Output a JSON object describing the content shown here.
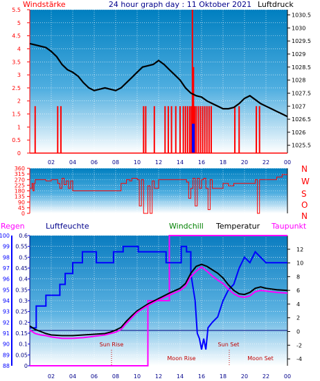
{
  "header": {
    "left": "Windstärke",
    "center": "24 hour graph day : 11 Oktober 2021",
    "right": "Luftdruck"
  },
  "legend3": {
    "regen": "Regen",
    "luftfeuchte": "Luftfeuchte",
    "windchill": "Windchill",
    "temperatur": "Temperatur",
    "taupunkt": "Taupunkt"
  },
  "annotations": {
    "sun_rise": "Sun Rise",
    "sun_set": "Sun Set",
    "moon_rise": "Moon Rise",
    "moon_set": "Moon Set"
  },
  "colors": {
    "wind": "#ff0000",
    "pressure": "#000000",
    "humidity": "#0000ff",
    "temperature": "#000000",
    "dewpoint": "#ff00ff",
    "rain_axis": "#0000ff",
    "regen_label": "#ff00ff",
    "windchill_label": "#008000",
    "taupunkt_label": "#ff00ff"
  },
  "chart_data": [
    {
      "type": "line",
      "title": "24 hour graph day : 11 Oktober 2021",
      "x_ticks": [
        "02",
        "04",
        "06",
        "08",
        "10",
        "12",
        "14",
        "16",
        "18",
        "20",
        "22",
        "00"
      ],
      "x_range": [
        0,
        24
      ],
      "left_axis": {
        "label": "Windstärke",
        "range": [
          0,
          5.5
        ],
        "ticks": [
          "0",
          "0.5",
          "1",
          "1.5",
          "2",
          "2.5",
          "3",
          "3.5",
          "4",
          "4.5",
          "5",
          "5.5"
        ]
      },
      "right_axis": {
        "label": "Luftdruck",
        "range": [
          1025.2,
          1030.7
        ],
        "ticks": [
          "1025.5",
          "1026",
          "1026.5",
          "1027",
          "1027.5",
          "1028",
          "1028.5",
          "1029",
          "1029.5",
          "1030",
          "1030.5"
        ]
      },
      "series": [
        {
          "name": "Luftdruck",
          "x": [
            0,
            0.5,
            1,
            1.5,
            2,
            2.5,
            3,
            3.5,
            4,
            4.5,
            5,
            5.5,
            6,
            6.5,
            7,
            7.5,
            8,
            8.5,
            9,
            9.5,
            10,
            10.5,
            11,
            11.5,
            12,
            12.5,
            13,
            13.5,
            14,
            14.5,
            15,
            15.5,
            16,
            16.5,
            17,
            17.5,
            18,
            18.5,
            19,
            19.5,
            20,
            20.5,
            21,
            21.5,
            22,
            22.5,
            23,
            23.5,
            24
          ],
          "y": [
            1029.4,
            1029.35,
            1029.3,
            1029.25,
            1029.1,
            1028.9,
            1028.6,
            1028.4,
            1028.3,
            1028.15,
            1027.9,
            1027.7,
            1027.6,
            1027.65,
            1027.7,
            1027.65,
            1027.6,
            1027.7,
            1027.9,
            1028.1,
            1028.3,
            1028.5,
            1028.55,
            1028.6,
            1028.75,
            1028.6,
            1028.4,
            1028.2,
            1028,
            1027.7,
            1027.5,
            1027.4,
            1027.35,
            1027.2,
            1027.1,
            1027,
            1026.9,
            1026.9,
            1026.95,
            1027.1,
            1027.3,
            1027.4,
            1027.25,
            1027.1,
            1027,
            1026.9,
            1026.8,
            1026.7,
            1026.6
          ]
        },
        {
          "name": "Windstärke",
          "x": [
            0.5,
            2.6,
            2.9,
            10.6,
            10.8,
            11.6,
            12.6,
            12.9,
            13.2,
            13.6,
            14.0,
            14.3,
            14.5,
            14.7,
            14.9,
            15.05,
            15.15,
            15.25,
            15.35,
            15.5,
            15.7,
            15.9,
            16.1,
            16.3,
            16.5,
            16.7,
            16.9,
            19.1,
            19.5,
            21.1,
            21.4
          ],
          "y": [
            1.8,
            1.8,
            1.8,
            1.8,
            1.8,
            1.8,
            1.8,
            1.8,
            1.8,
            1.8,
            1.8,
            1.8,
            1.8,
            1.8,
            1.8,
            1.8,
            5.5,
            3.3,
            1.8,
            1.8,
            1.8,
            1.8,
            1.8,
            1.8,
            1.8,
            1.8,
            1.8,
            1.8,
            1.8,
            1.8,
            1.8
          ]
        }
      ]
    },
    {
      "type": "line",
      "title": "",
      "x_range": [
        0,
        24
      ],
      "left_axis": {
        "range": [
          0,
          360
        ],
        "ticks": [
          "0",
          "45",
          "90",
          "135",
          "180",
          "225",
          "270",
          "315",
          "360"
        ]
      },
      "right_axis": {
        "ticks": [
          "N",
          "W",
          "S",
          "O",
          "N"
        ]
      },
      "series": [
        {
          "name": "",
          "x": [
            0,
            0.2,
            0.3,
            0.4,
            0.5,
            1,
            1.5,
            2,
            2.5,
            2.6,
            2.8,
            3,
            3.2,
            3.4,
            3.6,
            3.8,
            4,
            5,
            6,
            7,
            8,
            8.5,
            9,
            9.3,
            9.5,
            10,
            10.2,
            10.4,
            10.6,
            11,
            11.2,
            11.4,
            11.6,
            12,
            12.4,
            13,
            14,
            14.6,
            14.8,
            15,
            15.2,
            15.4,
            15.6,
            15.8,
            16,
            16.2,
            16.4,
            16.6,
            16.8,
            17,
            18,
            18.5,
            19,
            20,
            21,
            21.2,
            21.4,
            22,
            23,
            23.5,
            24
          ],
          "y": [
            200,
            240,
            180,
            240,
            270,
            270,
            260,
            270,
            270,
            240,
            200,
            280,
            230,
            260,
            200,
            260,
            180,
            180,
            180,
            180,
            180,
            240,
            270,
            260,
            280,
            270,
            60,
            270,
            0,
            220,
            0,
            260,
            200,
            270,
            270,
            270,
            270,
            250,
            120,
            200,
            280,
            60,
            280,
            200,
            270,
            280,
            200,
            30,
            270,
            200,
            240,
            220,
            240,
            240,
            270,
            0,
            270,
            270,
            290,
            310,
            310
          ]
        }
      ]
    },
    {
      "type": "line",
      "title": "",
      "x_range": [
        0,
        24
      ],
      "rain_axis": {
        "label": "Regen",
        "range": [
          0,
          0.6
        ],
        "ticks": [
          "0",
          "0.05",
          "0.1",
          "0.15",
          "0.2",
          "0.25",
          "0.3",
          "0.35",
          "0.4",
          "0.45",
          "0.5",
          "0.55",
          "0.6"
        ]
      },
      "humidity_axis": {
        "label": "Luftfeuchte",
        "range": [
          88,
          100
        ],
        "ticks": [
          "88",
          "89",
          "90",
          "91",
          "92",
          "93",
          "94",
          "95",
          "96",
          "97",
          "98",
          "99",
          "100"
        ]
      },
      "temperature_axis": {
        "range": [
          -5,
          14
        ],
        "ticks": [
          "-4",
          "-2",
          "0",
          "2",
          "4",
          "6",
          "8",
          "10",
          "12"
        ]
      },
      "series": [
        {
          "name": "Luftfeuchte",
          "x": [
            0,
            0.6,
            0.6,
            1.5,
            1.5,
            2.8,
            2.8,
            3.3,
            3.3,
            4.0,
            4.0,
            4.9,
            4.9,
            6.2,
            6.2,
            7.8,
            7.8,
            8.7,
            8.7,
            10.1,
            10.1,
            12.7,
            12.7,
            14.1,
            14.1,
            14.6,
            14.6,
            15.0,
            15.0,
            15.4,
            15.6,
            15.8,
            16.0,
            16.2,
            16.4,
            16.6,
            17.0,
            17.5,
            18.0,
            18.5,
            19.0,
            19.5,
            20.0,
            20.5,
            21.0,
            22.0,
            23.0,
            24.0
          ],
          "y": [
            91.5,
            91.5,
            93.5,
            93.5,
            94.5,
            94.5,
            95.5,
            95.5,
            96.5,
            96.5,
            97.5,
            97.5,
            98.5,
            98.5,
            97.5,
            97.5,
            98.5,
            98.5,
            99.0,
            99.0,
            98.5,
            98.5,
            97.5,
            97.5,
            99.0,
            99.0,
            98.5,
            98.5,
            96.5,
            94.0,
            91.0,
            90.5,
            89.5,
            90.5,
            89.5,
            91.5,
            92.0,
            92.5,
            94.0,
            95.0,
            95.5,
            97.0,
            98.0,
            97.5,
            98.5,
            97.5,
            97.5,
            97.5
          ]
        },
        {
          "name": "Temperatur",
          "x": [
            0,
            0.5,
            1,
            1.5,
            2,
            3,
            4,
            5,
            6,
            7,
            7.5,
            8,
            8.5,
            9,
            9.5,
            10,
            11,
            12,
            13,
            14,
            14.5,
            15,
            15.5,
            16,
            16.5,
            17,
            17.5,
            18,
            18.5,
            19,
            19.5,
            20,
            20.5,
            21,
            21.5,
            22,
            23,
            24
          ],
          "y": [
            0.8,
            0.3,
            0,
            -0.3,
            -0.5,
            -0.6,
            -0.6,
            -0.5,
            -0.4,
            -0.3,
            -0.1,
            0.2,
            0.6,
            1.5,
            2.3,
            3.0,
            4.0,
            4.8,
            5.6,
            6.3,
            7.0,
            8.5,
            9.5,
            9.8,
            9.5,
            9.0,
            8.5,
            7.8,
            6.8,
            6.0,
            5.5,
            5.4,
            5.7,
            6.3,
            6.5,
            6.3,
            6.1,
            6.0
          ]
        },
        {
          "name": "Taupunkt",
          "x": [
            0,
            0.5,
            1,
            1.5,
            2,
            3,
            4,
            5,
            6,
            7,
            7.5,
            8,
            8.5,
            9,
            9.5,
            10,
            11,
            12,
            13,
            14,
            14.5,
            15,
            15.5,
            16,
            16.5,
            17,
            17.5,
            18,
            18.5,
            19,
            19.5,
            20,
            20.5,
            21,
            21.5,
            22,
            23,
            24
          ],
          "y": [
            0.2,
            -0.3,
            -0.5,
            -0.6,
            -0.8,
            -1.0,
            -1.0,
            -0.9,
            -0.7,
            -0.5,
            -0.3,
            -0.1,
            0.3,
            1.2,
            2.0,
            2.8,
            3.8,
            4.6,
            5.3,
            6.0,
            6.6,
            8.0,
            8.8,
            9.4,
            8.8,
            8.1,
            7.5,
            7.0,
            6.2,
            5.5,
            5.1,
            5.0,
            5.2,
            5.8,
            6.0,
            5.9,
            5.7,
            5.6
          ]
        },
        {
          "name": "Regen",
          "x": [
            0,
            11,
            11,
            13,
            13,
            13.5,
            13.5,
            24
          ],
          "y": [
            0,
            0,
            0.3,
            0.3,
            0.6,
            0.6,
            0.6,
            0.6
          ]
        }
      ]
    }
  ]
}
